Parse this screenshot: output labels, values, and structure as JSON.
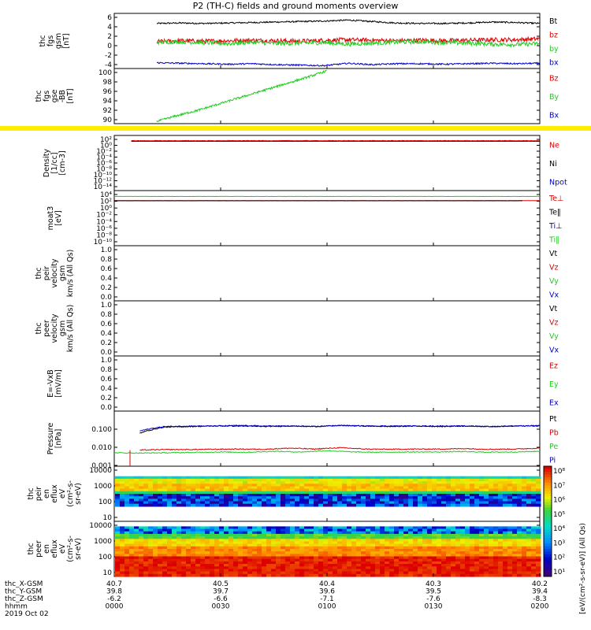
{
  "title": "P2 (TH-C) fields and ground moments overview",
  "chart_data": [
    {
      "panel": "fgs-gsm",
      "type": "line",
      "ylabel": [
        "thc",
        "fgs",
        "gsm",
        "[nT]"
      ],
      "yticks": [
        "6",
        "4",
        "2",
        "0",
        "-2",
        "-4"
      ],
      "ylim": [
        -5,
        6.5
      ],
      "legend": [
        {
          "label": "Bt",
          "color": "#000000"
        },
        {
          "label": "bz",
          "color": "#dd0000"
        },
        {
          "label": "by",
          "color": "#22cc22"
        },
        {
          "label": "bx",
          "color": "#0000cc"
        }
      ],
      "series": [
        {
          "name": "Bt",
          "color": "#000000",
          "x_start": 0.1,
          "x_end": 1.0,
          "y": [
            4.4,
            4.5,
            4.4,
            4.5,
            4.6,
            4.7,
            4.8,
            4.9,
            5.1,
            4.8,
            4.5,
            4.4,
            4.4,
            4.5,
            4.7,
            4.6,
            4.4
          ]
        },
        {
          "name": "bz",
          "color": "#dd0000",
          "x_start": 0.1,
          "x_end": 1.0,
          "y": [
            0.6,
            0.8,
            0.7,
            0.8,
            0.9,
            0.8,
            0.7,
            0.9,
            1.0,
            0.9,
            0.8,
            0.9,
            0.8,
            0.9,
            1.0,
            1.0,
            1.2
          ]
        },
        {
          "name": "by",
          "color": "#22cc22",
          "x_start": 0.1,
          "x_end": 1.0,
          "y": [
            0.5,
            0.6,
            0.4,
            0.2,
            0.5,
            0.2,
            0.3,
            0.4,
            0.1,
            0.3,
            0.5,
            0.6,
            0.4,
            0.3,
            0.1,
            0.0,
            0.2
          ]
        },
        {
          "name": "bx",
          "color": "#0000cc",
          "x_start": 0.1,
          "x_end": 1.0,
          "y": [
            -3.8,
            -3.9,
            -4.0,
            -4.1,
            -4.0,
            -4.2,
            -4.3,
            -4.4,
            -3.9,
            -4.2,
            -4.0,
            -4.0,
            -4.1,
            -4.0,
            -3.9,
            -4.0,
            -3.9
          ]
        }
      ]
    },
    {
      "panel": "fgs-gse",
      "type": "line",
      "ylabel": [
        "thc",
        "fgs",
        "gse",
        "-BB",
        "[nT]"
      ],
      "yticks": [
        "100",
        "98",
        "96",
        "94",
        "92",
        "90"
      ],
      "ylim": [
        88.5,
        100.5
      ],
      "legend": [
        {
          "label": "Bz",
          "color": "#dd0000"
        },
        {
          "label": "By",
          "color": "#22cc22"
        },
        {
          "label": "Bx",
          "color": "#0000cc"
        }
      ],
      "series": [
        {
          "name": "green",
          "color": "#22cc22",
          "x_start": 0.1,
          "x_end": 0.5,
          "y": [
            89.0,
            90.3,
            91.5,
            92.9,
            94.3,
            95.7,
            97.1,
            98.5,
            100.0
          ]
        }
      ]
    },
    {
      "panel": "density",
      "type": "line",
      "ylabel": [
        "Density",
        "[1/cc]",
        "[cm-3]"
      ],
      "yticks": [
        "10²",
        "10⁰",
        "10⁻²",
        "10⁻⁴",
        "10⁻⁶",
        "10⁻⁸",
        "10⁻¹⁰",
        "10⁻¹²",
        "10⁻¹⁴"
      ],
      "scale": "log",
      "legend": [
        {
          "label": "Ne",
          "color": "#dd0000"
        },
        {
          "label": "Ni",
          "color": "#000000"
        },
        {
          "label": "Npot",
          "color": "#0000cc"
        }
      ]
    },
    {
      "panel": "temperature",
      "type": "line",
      "ylabel": [
        "moat3",
        "[eV]"
      ],
      "yticks": [
        "10⁴",
        "10²",
        "10⁰",
        "10⁻²",
        "10⁻⁴",
        "10⁻⁶",
        "10⁻⁸",
        "10⁻¹⁰"
      ],
      "scale": "log",
      "legend": [
        {
          "label": "Te⊥",
          "color": "#dd0000"
        },
        {
          "label": "Te‖",
          "color": "#000000"
        },
        {
          "label": "Ti⊥",
          "color": "#0000cc"
        },
        {
          "label": "Ti‖",
          "color": "#22cc22"
        }
      ]
    },
    {
      "panel": "peir-velocity",
      "type": "line",
      "ylabel": [
        "thc",
        "peir",
        "velocity",
        "gsm",
        "km/s (All Qs)"
      ],
      "yticks": [
        "1.0",
        "0.8",
        "0.6",
        "0.4",
        "0.2",
        "0.0"
      ],
      "legend": [
        {
          "label": "Vt",
          "color": "#000000"
        },
        {
          "label": "Vz",
          "color": "#dd0000"
        },
        {
          "label": "Vy",
          "color": "#22cc22"
        },
        {
          "label": "Vx",
          "color": "#0000cc"
        }
      ]
    },
    {
      "panel": "peer-velocity",
      "type": "line",
      "ylabel": [
        "thc",
        "peer",
        "velocity",
        "gsm",
        "km/s (All Qs)"
      ],
      "yticks": [
        "1.0",
        "0.8",
        "0.6",
        "0.4",
        "0.2",
        "0.0"
      ],
      "legend": [
        {
          "label": "Vt",
          "color": "#000000"
        },
        {
          "label": "Vz",
          "color": "#dd0000"
        },
        {
          "label": "Vy",
          "color": "#22cc22"
        },
        {
          "label": "Vx",
          "color": "#0000cc"
        }
      ]
    },
    {
      "panel": "efield",
      "type": "line",
      "ylabel": [
        "E=-VxB",
        "[mV/m]"
      ],
      "yticks": [
        "1.0",
        "0.8",
        "0.6",
        "0.4",
        "0.2",
        "0.0"
      ],
      "legend": [
        {
          "label": "Ez",
          "color": "#dd0000"
        },
        {
          "label": "Ey",
          "color": "#22cc22"
        },
        {
          "label": "Ex",
          "color": "#0000cc"
        }
      ]
    },
    {
      "panel": "pressure",
      "type": "line",
      "ylabel": [
        "Pressure",
        "[nPa]"
      ],
      "yticks": [
        "0.100",
        "0.010",
        "0.001"
      ],
      "scale": "log",
      "legend": [
        {
          "label": "Pt",
          "color": "#000000"
        },
        {
          "label": "Pb",
          "color": "#dd0000"
        },
        {
          "label": "Pe",
          "color": "#22cc22"
        },
        {
          "label": "Pi",
          "color": "#0000cc"
        }
      ],
      "series": [
        {
          "name": "Pt",
          "color": "#000000",
          "x_start": 0.06,
          "x_end": 1.0,
          "y": [
            0.06,
            0.13,
            0.14,
            0.15,
            0.15,
            0.14,
            0.15,
            0.14,
            0.16,
            0.15,
            0.14,
            0.15,
            0.14,
            0.15,
            0.14,
            0.15,
            0.15
          ]
        },
        {
          "name": "Pi",
          "color": "#0000cc",
          "x_start": 0.06,
          "x_end": 1.0,
          "y": [
            0.08,
            0.14,
            0.15,
            0.15,
            0.16,
            0.15,
            0.15,
            0.14,
            0.16,
            0.15,
            0.15,
            0.15,
            0.15,
            0.15,
            0.14,
            0.15,
            0.16
          ]
        },
        {
          "name": "Pb",
          "color": "#dd0000",
          "x_start": 0.06,
          "x_end": 1.0,
          "y": [
            0.007,
            0.0075,
            0.0075,
            0.0078,
            0.008,
            0.0078,
            0.009,
            0.008,
            0.0095,
            0.008,
            0.0078,
            0.008,
            0.008,
            0.0085,
            0.0078,
            0.008,
            0.009
          ]
        },
        {
          "name": "Pe",
          "color": "#22cc22",
          "x_start": 0.0,
          "x_end": 1.0,
          "y": [
            0.005,
            0.0048,
            0.005,
            0.0052,
            0.0055,
            0.0053,
            0.006,
            0.0055,
            0.0065,
            0.0055,
            0.0053,
            0.0055,
            0.0055,
            0.0058,
            0.0054,
            0.0055,
            0.006
          ]
        }
      ]
    },
    {
      "panel": "peir-eflux",
      "type": "heatmap",
      "ylabel": [
        "thc",
        "peir",
        "en",
        "eflux",
        "eV",
        "(cm²-s-",
        "sr-eV)"
      ],
      "yticks": [
        "10000",
        "1000",
        "100",
        "10"
      ]
    },
    {
      "panel": "peer-eflux",
      "type": "heatmap",
      "ylabel": [
        "thc",
        "peer",
        "en",
        "eflux",
        "eV",
        "(cm²-s-",
        "sr-eV)"
      ],
      "yticks": [
        "10000",
        "1000",
        "100",
        "10"
      ]
    }
  ],
  "colorbar": {
    "ticks": [
      "10⁸",
      "10⁷",
      "10⁶",
      "10⁵",
      "10⁴",
      "10³",
      "10²",
      "10¹"
    ],
    "label": "[eV/(cm²-s-sr-eV)] (All Qs)"
  },
  "xaxis": {
    "ticks": [
      "0000",
      "0030",
      "0100",
      "0130",
      "0200"
    ],
    "rows": [
      {
        "name": "thc_X-GSM",
        "values": [
          "40.7",
          "40.5",
          "40.4",
          "40.3",
          "40.2"
        ]
      },
      {
        "name": "thc_Y-GSM",
        "values": [
          "39.8",
          "39.7",
          "39.6",
          "39.5",
          "39.4"
        ]
      },
      {
        "name": "thc_Z-GSM",
        "values": [
          "-6.2",
          "-6.6",
          "-7.1",
          "-7.6",
          "-8.3"
        ]
      },
      {
        "name": "hhmm",
        "values": [
          "0000",
          "0030",
          "0100",
          "0130",
          "0200"
        ]
      }
    ],
    "date": "2019 Oct 02"
  },
  "colors": {
    "black": "#000000",
    "red": "#dd0000",
    "green": "#22cc22",
    "blue": "#0000cc",
    "yellow": "#ffee00"
  }
}
